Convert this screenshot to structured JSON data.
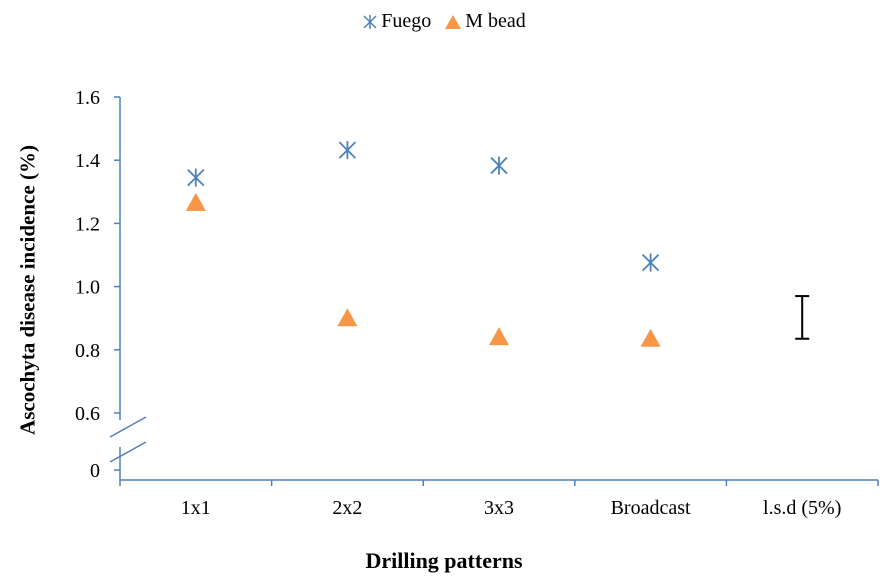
{
  "chart_data": {
    "type": "scatter",
    "categories": [
      "1x1",
      "2x2",
      "3x3",
      "Broadcast",
      "l.s.d (5%)"
    ],
    "series": [
      {
        "name": "Fuego",
        "marker": "asterisk",
        "color": "#4f81bd",
        "values": [
          1.345,
          1.432,
          1.383,
          1.076,
          null
        ]
      },
      {
        "name": "M bead",
        "marker": "triangle",
        "color": "#f79646",
        "values": [
          1.265,
          0.9,
          0.84,
          0.835,
          null
        ]
      }
    ],
    "lsd": {
      "category": "l.s.d (5%)",
      "low": 0.835,
      "high": 0.97
    },
    "xlabel": "Drilling patterns",
    "ylabel": "Ascochyta disease incidence (%)",
    "yticks": [
      "0",
      "0.6",
      "0.8",
      "1.0",
      "1.2",
      "1.4",
      "1.6"
    ],
    "ylim": [
      0.6,
      1.6
    ],
    "axis_break": true,
    "grid": false,
    "legend_position": "top"
  }
}
